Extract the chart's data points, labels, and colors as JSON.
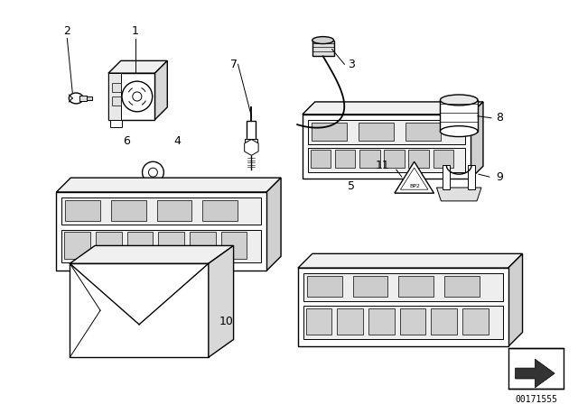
{
  "bg_color": "#ffffff",
  "line_color": "#000000",
  "fig_width": 6.4,
  "fig_height": 4.48,
  "dpi": 100,
  "diagram_id": "00171555"
}
